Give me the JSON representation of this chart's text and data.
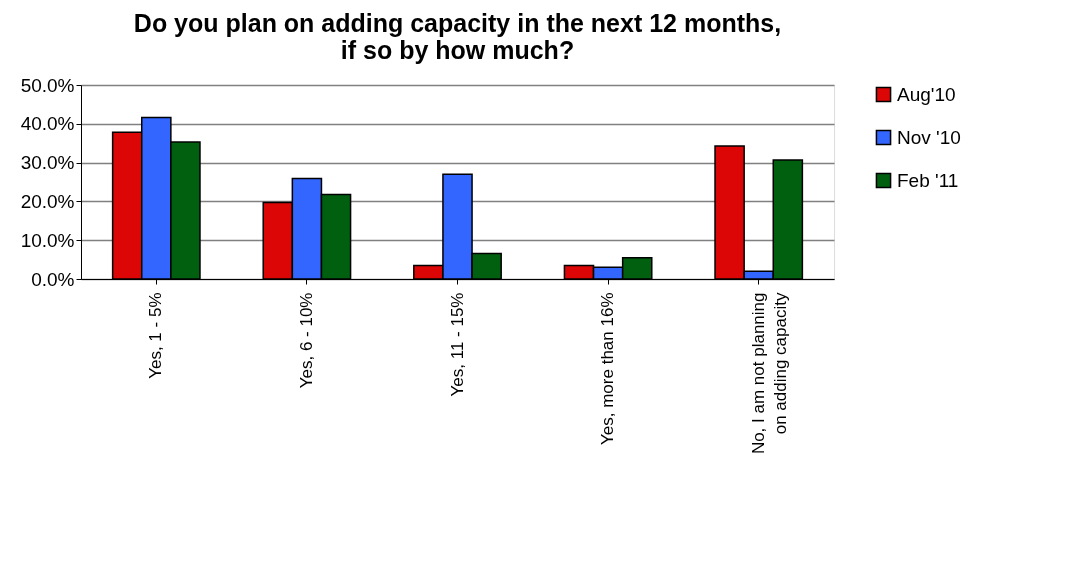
{
  "chart_data": {
    "type": "bar",
    "title": [
      "Do you plan on adding capacity in the next 12 months,",
      "if so by how much?"
    ],
    "categories": [
      "Yes, 1 - 5%",
      "Yes, 6 - 10%",
      "Yes, 11 - 15%",
      "Yes, more than 16%",
      "No, I am not planning\non adding capacity"
    ],
    "series": [
      {
        "name": "Aug'10",
        "color": "#dd0606",
        "values": [
          37.8,
          19.7,
          3.5,
          3.5,
          34.3
        ]
      },
      {
        "name": "Nov '10",
        "color": "#3366ff",
        "values": [
          41.6,
          25.9,
          27.0,
          3.0,
          2.0
        ]
      },
      {
        "name": "Feb '11",
        "color": "#006010",
        "values": [
          35.3,
          21.8,
          6.6,
          5.5,
          30.7
        ]
      }
    ],
    "ylim": [
      0,
      50
    ],
    "yticks": [
      {
        "value": 0,
        "label": "0.0%"
      },
      {
        "value": 10,
        "label": "10.0%"
      },
      {
        "value": 20,
        "label": "20.0%"
      },
      {
        "value": 30,
        "label": "30.0%"
      },
      {
        "value": 40,
        "label": "40.0%"
      },
      {
        "value": 50,
        "label": "50.0%"
      }
    ],
    "grid": "y",
    "legend": "right"
  }
}
